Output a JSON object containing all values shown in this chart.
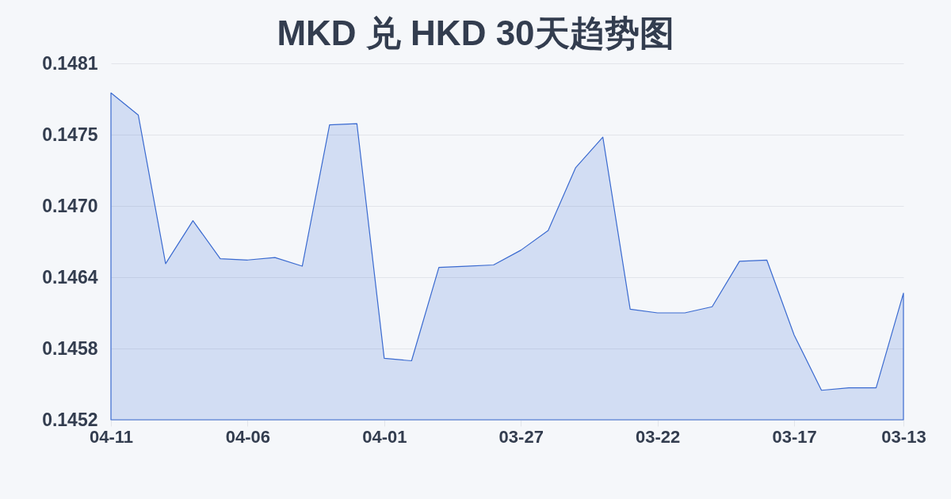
{
  "chart_data": {
    "type": "area",
    "title": "MKD 兑 HKD 30天趋势图",
    "categories": [
      "04-11",
      null,
      null,
      null,
      null,
      "04-06",
      null,
      null,
      null,
      null,
      "04-01",
      null,
      null,
      null,
      null,
      "03-27",
      null,
      null,
      null,
      null,
      "03-22",
      null,
      null,
      null,
      null,
      "03-17",
      null,
      null,
      null,
      "03-13"
    ],
    "series": [
      {
        "color": "#3a6ad0",
        "values": [
          0.14788,
          0.1477,
          0.14649,
          0.14684,
          0.14653,
          0.14652,
          0.14654,
          0.14647,
          0.14762,
          0.14763,
          0.14572,
          0.1457,
          0.14646,
          0.14647,
          0.14648,
          0.1466,
          0.14676,
          0.14727,
          0.14752,
          0.14612,
          0.14609,
          0.14609,
          0.14614,
          0.14651,
          0.14652,
          0.14591,
          0.14546,
          0.14548,
          0.14548,
          0.14625
        ]
      }
    ],
    "ylim": [
      0.14522,
      0.14812
    ],
    "yticks": [
      {
        "value": 0.14522,
        "label": "0.1452"
      },
      0.1458,
      {
        "value": 0.14638,
        "label": "0.1464"
      },
      {
        "value": 0.14696,
        "label": "0.1470"
      },
      {
        "value": 0.14754,
        "label": "0.1475"
      },
      {
        "value": 0.14812,
        "label": "0.1481"
      }
    ],
    "grid": "y"
  }
}
